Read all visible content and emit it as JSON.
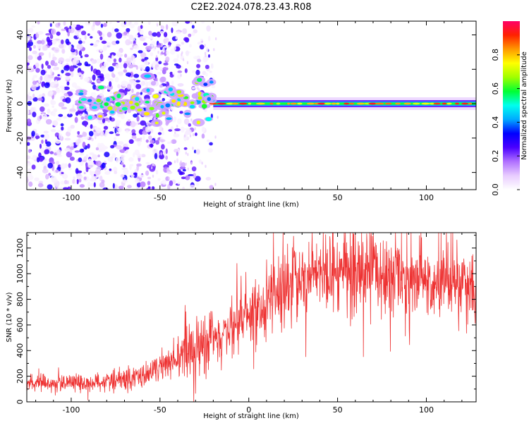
{
  "figure": {
    "title": "C2E2.2024.078.23.43.R08"
  },
  "chart_data": [
    {
      "type": "heatmap",
      "xlabel": "Height of straight line (km)",
      "ylabel": "Frequency (Hz)",
      "xlim": [
        -125,
        128
      ],
      "ylim": [
        -50,
        48
      ],
      "x_ticks": [
        -100,
        -50,
        0,
        50,
        100
      ],
      "y_ticks": [
        -40,
        -20,
        0,
        20,
        40
      ],
      "colorbar": {
        "label": "Normalized spectral amplitude",
        "range": [
          0,
          1
        ],
        "ticks": [
          0.0,
          0.2,
          0.4,
          0.6,
          0.8
        ],
        "colormap": [
          "#ffffff",
          "#e8ccff",
          "#b070ff",
          "#4a00ff",
          "#0000ff",
          "#00aaff",
          "#00ffee",
          "#00ff33",
          "#a0ff00",
          "#ffff00",
          "#ff9900",
          "#ff2200",
          "#ff0066"
        ]
      },
      "features": {
        "carrier_frequency_hz": 0,
        "noise_spread_region_km": [
          -125,
          -55
        ],
        "transition_region_km": [
          -55,
          -20
        ],
        "stable_line_region_km": [
          -20,
          128
        ]
      }
    },
    {
      "type": "line",
      "xlabel": "Height of straight line (km)",
      "ylabel": "SNR (10 * v/v)",
      "xlim": [
        -125,
        128
      ],
      "ylim": [
        0,
        1320
      ],
      "x_ticks": [
        -100,
        -50,
        0,
        50,
        100
      ],
      "y_ticks": [
        0,
        200,
        400,
        600,
        800,
        1000,
        1200
      ],
      "color": "#ee3333",
      "trend": {
        "x": [
          -125,
          -110,
          -90,
          -70,
          -55,
          -45,
          -35,
          -25,
          -15,
          -5,
          5,
          15,
          25,
          40,
          55,
          70,
          85,
          100,
          115,
          128
        ],
        "y": [
          150,
          145,
          150,
          170,
          220,
          300,
          380,
          430,
          520,
          620,
          720,
          850,
          960,
          1000,
          1020,
          1000,
          960,
          920,
          900,
          890
        ]
      }
    }
  ]
}
